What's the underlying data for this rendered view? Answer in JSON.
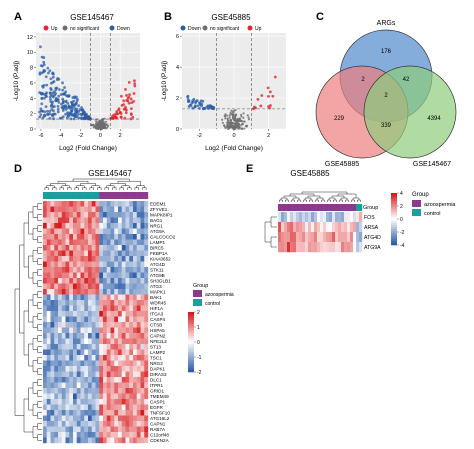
{
  "panels": {
    "A": {
      "letter": "A",
      "title": "GSE145467",
      "legend": {
        "up": "Up",
        "ns": "no significant",
        "down": "Down"
      },
      "xlabel": "Log2 (Fold Change)",
      "ylabel": "-Log10 (P.adj)"
    },
    "B": {
      "letter": "B",
      "title": "GSE45885",
      "legend": {
        "down": "Down",
        "ns": "no significant",
        "up": "Up"
      },
      "xlabel": "Log2 (Fold Change)",
      "ylabel": "-Log10 (P.adj)"
    },
    "C": {
      "letter": "C",
      "sets": [
        "ARGs",
        "GSE45885",
        "GSE145467"
      ]
    },
    "D": {
      "letter": "D",
      "title": "GSE145467",
      "group_title": "Group",
      "groups": [
        "azoospermia",
        "control"
      ],
      "genes": [
        "EDEM1",
        "ZFYVE1",
        "MAPK8IP1",
        "BAG1",
        "NRG1",
        "ATG9A",
        "CALCOCO2",
        "LAMP1",
        "BIRC5",
        "FKBP1A",
        "KIAA0652",
        "ATG4D",
        "STK11",
        "ATG9B",
        "SH3GLB1",
        "ATG3",
        "MAPK1",
        "BAK1",
        "WDR45",
        "HIF1A",
        "ITGA3",
        "CASP4",
        "CTSB",
        "HSPA5",
        "CAPN2",
        "NFE2L2",
        "ST13",
        "LAMP2",
        "TSC1",
        "NRG2",
        "DAPK1",
        "DIRAS3",
        "DLC1",
        "ITPR1",
        "GRID1",
        "TMEM49",
        "CASP1",
        "EGFR",
        "TNFSF10",
        "ATG16L2",
        "CAPN1",
        "RAB7A",
        "C12orf48",
        "CDKN2A"
      ]
    },
    "E": {
      "letter": "E",
      "title": "GSE45885",
      "group_title": "Group",
      "groups": [
        "azoospermia",
        "control"
      ],
      "genes": [
        "FOS",
        "ARSA",
        "ATG4D",
        "ATG9A"
      ]
    }
  },
  "colors": {
    "up": "#e3262f",
    "down": "#2b5ea8",
    "ns": "#6e6e6e",
    "azoospermia": "#8c3a8e",
    "control": "#1a9e9e",
    "venn_argss": "#6f9fd6",
    "venn_gse45885": "#ee7d7d",
    "venn_gse145467": "#8fcc7c",
    "heat_high": "#d7191c",
    "heat_mid": "#ffffff",
    "heat_low": "#2c5da8"
  },
  "chart_data": [
    {
      "type": "scatter",
      "panel": "A",
      "title": "GSE145467",
      "xlabel": "Log2 (Fold Change)",
      "ylabel": "-Log10 (P.adj)",
      "xlim": [
        -6.5,
        4
      ],
      "ylim": [
        0,
        12.5
      ],
      "xticks": [
        -6,
        -4,
        -2,
        0,
        2
      ],
      "yticks": [
        0,
        2,
        4,
        6,
        8,
        10,
        12
      ],
      "thresholds": {
        "x": [
          -1,
          1
        ],
        "y": 1.3
      },
      "series": [
        {
          "name": "Up",
          "shape": "x>1 right cone, max ~9"
        },
        {
          "name": "no significant",
          "shape": "|x|<1"
        },
        {
          "name": "Down",
          "shape": "x<-1 left cone, max ~12"
        }
      ]
    },
    {
      "type": "scatter",
      "panel": "B",
      "title": "GSE45885",
      "xlabel": "Log2 (Fold Change)",
      "ylabel": "-Log10 (P.adj)",
      "xlim": [
        -3,
        3
      ],
      "ylim": [
        0,
        6.2
      ],
      "xticks": [
        -2,
        0,
        2
      ],
      "yticks": [
        0,
        2,
        4,
        6
      ],
      "thresholds": {
        "x": [
          -1,
          1
        ],
        "y": 1.3
      }
    },
    {
      "type": "venn",
      "panel": "C",
      "sets": [
        "ARGs",
        "GSE45885",
        "GSE145467"
      ],
      "regions": [
        {
          "label": "ARGs only",
          "value": 176
        },
        {
          "label": "GSE45885 only",
          "value": 229
        },
        {
          "label": "GSE145467 only",
          "value": 4394
        },
        {
          "label": "ARGs∩GSE45885",
          "value": 2
        },
        {
          "label": "ARGs∩GSE145467",
          "value": 42
        },
        {
          "label": "GSE45885∩GSE145467",
          "value": 339
        },
        {
          "label": "all three",
          "value": 2
        }
      ]
    },
    {
      "type": "heatmap",
      "panel": "D",
      "scale": [
        -2,
        2
      ],
      "scale_ticks": [
        2,
        1,
        0,
        -1,
        -2
      ],
      "n_rows": 44,
      "n_cols": 28,
      "group_split": 15
    },
    {
      "type": "heatmap",
      "panel": "E",
      "scale": [
        -4,
        4
      ],
      "scale_ticks": [
        4,
        2,
        0,
        -2,
        -4
      ],
      "n_rows": 4,
      "n_cols": 28,
      "group_split": 26
    }
  ]
}
